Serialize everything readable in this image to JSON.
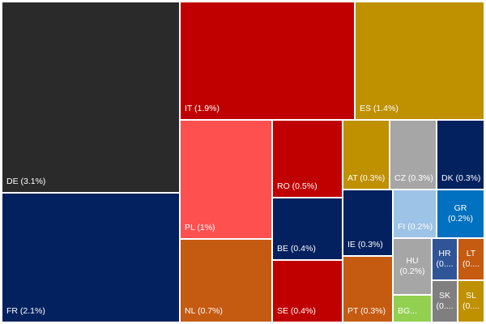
{
  "chart_data": {
    "type": "treemap",
    "title": "",
    "items": [
      {
        "key": "DE",
        "label": "DE (3.1%)",
        "value": 3.1,
        "color": "#2a2a2a",
        "text_color": "#ffffff"
      },
      {
        "key": "FR",
        "label": "FR (2.1%)",
        "value": 2.1,
        "color": "#03215e",
        "text_color": "#ffffff"
      },
      {
        "key": "IT",
        "label": "IT (1.9%)",
        "value": 1.9,
        "color": "#c00000",
        "text_color": "#ffffff"
      },
      {
        "key": "ES",
        "label": "ES (1.4%)",
        "value": 1.4,
        "color": "#bf9000",
        "text_color": "#ffffff"
      },
      {
        "key": "PL",
        "label": "PL (1%)",
        "value": 1.0,
        "color": "#ff5050",
        "text_color": "#ffffff"
      },
      {
        "key": "NL",
        "label": "NL (0.7%)",
        "value": 0.7,
        "color": "#c55a11",
        "text_color": "#ffffff"
      },
      {
        "key": "RO",
        "label": "RO (0.5%)",
        "value": 0.5,
        "color": "#c00000",
        "text_color": "#ffffff"
      },
      {
        "key": "BE",
        "label": "BE (0.4%)",
        "value": 0.4,
        "color": "#03215e",
        "text_color": "#ffffff"
      },
      {
        "key": "SE",
        "label": "SE (0.4%)",
        "value": 0.4,
        "color": "#c00000",
        "text_color": "#ffffff"
      },
      {
        "key": "AT",
        "label": "AT (0.3%)",
        "value": 0.3,
        "color": "#bf9000",
        "text_color": "#ffffff"
      },
      {
        "key": "CZ",
        "label": "CZ (0.3%)",
        "value": 0.3,
        "color": "#a6a6a6",
        "text_color": "#ffffff"
      },
      {
        "key": "DK",
        "label": "DK (0.3%)",
        "value": 0.3,
        "color": "#03215e",
        "text_color": "#ffffff"
      },
      {
        "key": "IE",
        "label": "IE (0.3%)",
        "value": 0.3,
        "color": "#03215e",
        "text_color": "#ffffff"
      },
      {
        "key": "PT",
        "label": "PT (0.3%)",
        "value": 0.3,
        "color": "#c55a11",
        "text_color": "#ffffff"
      },
      {
        "key": "FI",
        "label": "FI (0.2%)",
        "value": 0.2,
        "color": "#9dc3e6",
        "text_color": "#ffffff"
      },
      {
        "key": "GR",
        "label_lines": [
          "GR",
          "(0.2%)"
        ],
        "value": 0.2,
        "color": "#0070c0",
        "text_color": "#ffffff"
      },
      {
        "key": "HU",
        "label_lines": [
          "HU",
          "(0.2%)"
        ],
        "value": 0.2,
        "color": "#a6a6a6",
        "text_color": "#ffffff"
      },
      {
        "key": "BG",
        "label": "BG...",
        "color": "#92d050",
        "text_color": "#ffffff"
      },
      {
        "key": "HR",
        "label_lines": [
          "HR",
          "(0...."
        ],
        "color": "#2f5597",
        "text_color": "#ffffff"
      },
      {
        "key": "LT",
        "label_lines": [
          "LT",
          "(0...."
        ],
        "color": "#c55a11",
        "text_color": "#ffffff"
      },
      {
        "key": "SK",
        "label_lines": [
          "SK",
          "(0...."
        ],
        "color": "#7f7f7f",
        "text_color": "#ffffff"
      },
      {
        "key": "SL",
        "label_lines": [
          "SL",
          "(0...."
        ],
        "color": "#bf9000",
        "text_color": "#ffffff"
      }
    ]
  }
}
